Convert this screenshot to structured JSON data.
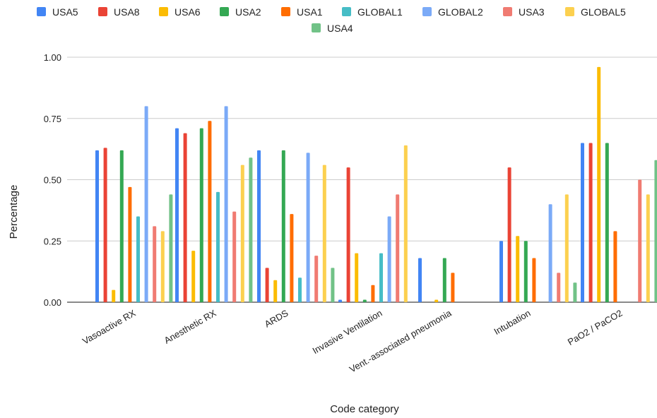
{
  "chart_data": {
    "type": "bar",
    "xlabel": "Code category",
    "ylabel": "Percentage",
    "ylim": [
      0,
      1
    ],
    "yticks": [
      "0.00",
      "0.25",
      "0.50",
      "0.75",
      "1.00"
    ],
    "grid": true,
    "legend_position": "top",
    "categories": [
      "Vasoactive RX",
      "Anesthetic RX",
      "ARDS",
      "Invasive Ventilation",
      "Vent.-associated pneumonia",
      "Intubation",
      "PaO2 / PaCO2"
    ],
    "series": [
      {
        "name": "USA5",
        "color": "#4285F4",
        "values": [
          0.62,
          0.71,
          0.62,
          0.01,
          0.18,
          0.25,
          0.65
        ]
      },
      {
        "name": "USA8",
        "color": "#EA4335",
        "values": [
          0.63,
          0.69,
          0.14,
          0.55,
          0.0,
          0.55,
          0.65
        ]
      },
      {
        "name": "USA6",
        "color": "#FBBC04",
        "values": [
          0.05,
          0.21,
          0.09,
          0.2,
          0.01,
          0.27,
          0.96
        ]
      },
      {
        "name": "USA2",
        "color": "#34A853",
        "values": [
          0.62,
          0.71,
          0.62,
          0.01,
          0.18,
          0.25,
          0.65
        ]
      },
      {
        "name": "USA1",
        "color": "#FF6D01",
        "values": [
          0.47,
          0.74,
          0.36,
          0.07,
          0.12,
          0.18,
          0.29
        ]
      },
      {
        "name": "GLOBAL1",
        "color": "#46BDC6",
        "values": [
          0.35,
          0.45,
          0.1,
          0.2,
          0.0,
          0.0,
          0.0
        ]
      },
      {
        "name": "GLOBAL2",
        "color": "#7BAAF7",
        "values": [
          0.8,
          0.8,
          0.61,
          0.35,
          0.0,
          0.4,
          0.0
        ]
      },
      {
        "name": "USA3",
        "color": "#F07B72",
        "values": [
          0.31,
          0.37,
          0.19,
          0.44,
          0.0,
          0.12,
          0.5
        ]
      },
      {
        "name": "GLOBAL5",
        "color": "#FCD04F",
        "values": [
          0.29,
          0.56,
          0.56,
          0.64,
          0.0,
          0.44,
          0.44
        ]
      },
      {
        "name": "USA4",
        "color": "#71C287",
        "values": [
          0.44,
          0.59,
          0.14,
          0.0,
          0.0,
          0.08,
          0.58
        ]
      }
    ]
  }
}
